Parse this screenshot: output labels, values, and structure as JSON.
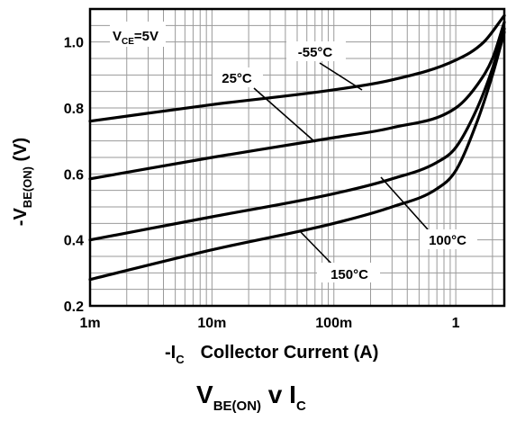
{
  "chart_data": {
    "type": "line",
    "x_scale": "log",
    "xlim": [
      "1m",
      "2.5"
    ],
    "ylim": [
      0.2,
      1.1
    ],
    "grid": true,
    "x_ticks": [
      "1m",
      "10m",
      "100m",
      "1"
    ],
    "y_ticks": [
      "0.2",
      "0.4",
      "0.6",
      "0.8",
      "1.0"
    ],
    "ylabel": {
      "main": "-V",
      "sub": "BE(ON)",
      "unit": " (V)"
    },
    "xlabel": {
      "main": "-I",
      "sub": "C",
      "text": "Collector Current (A)"
    },
    "title": {
      "a": "V",
      "a_sub": "BE(ON)",
      "b": " v I",
      "b_sub": "C"
    },
    "condition": {
      "main": "V",
      "sub": "CE",
      "value": "=5V"
    },
    "series": [
      {
        "name": "-55°C",
        "x": [
          0.001,
          0.01,
          0.1,
          0.3,
          1.0,
          1.7,
          2.5
        ],
        "y": [
          0.76,
          0.81,
          0.855,
          0.885,
          0.945,
          1.0,
          1.08
        ]
      },
      {
        "name": "25°C",
        "x": [
          0.001,
          0.01,
          0.1,
          0.3,
          1.0,
          1.5,
          2.0,
          2.5
        ],
        "y": [
          0.585,
          0.65,
          0.71,
          0.74,
          0.8,
          0.87,
          0.95,
          1.06
        ]
      },
      {
        "name": "100°C",
        "x": [
          0.001,
          0.01,
          0.1,
          0.3,
          0.7,
          1.0,
          1.5,
          2.0,
          2.5
        ],
        "y": [
          0.4,
          0.47,
          0.54,
          0.585,
          0.635,
          0.68,
          0.8,
          0.92,
          1.04
        ]
      },
      {
        "name": "150°C",
        "x": [
          0.001,
          0.01,
          0.1,
          0.3,
          0.7,
          1.0,
          1.5,
          2.0,
          2.5
        ],
        "y": [
          0.28,
          0.37,
          0.45,
          0.5,
          0.555,
          0.61,
          0.76,
          0.9,
          1.03
        ]
      }
    ]
  }
}
